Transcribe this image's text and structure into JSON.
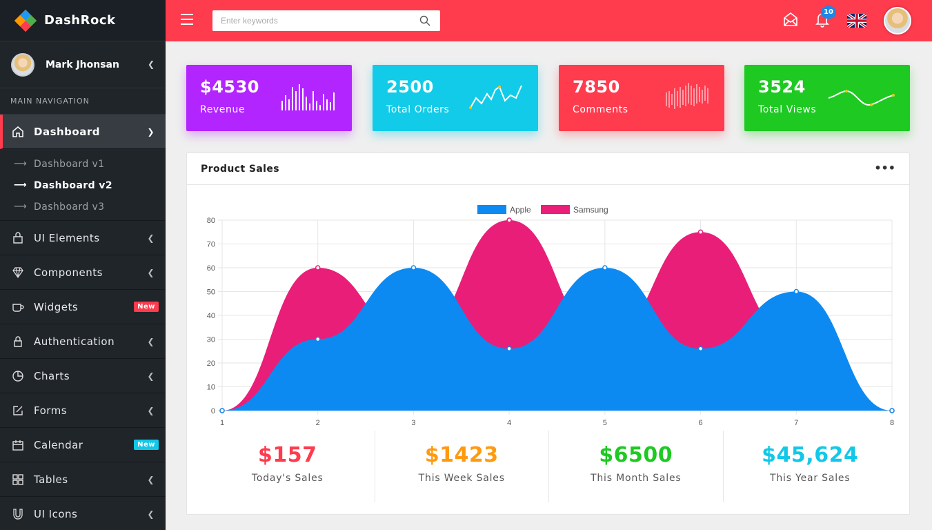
{
  "brand": {
    "name": "DashRock"
  },
  "profile": {
    "name": "Mark Jhonsan"
  },
  "sidebar": {
    "header": "MAIN NAVIGATION",
    "dashboard": {
      "label": "Dashboard",
      "sub": [
        {
          "label": "Dashboard v1"
        },
        {
          "label": "Dashboard v2"
        },
        {
          "label": "Dashboard v3"
        }
      ]
    },
    "items": [
      {
        "label": "UI Elements",
        "icon": "bag-icon"
      },
      {
        "label": "Components",
        "icon": "diamond-icon"
      },
      {
        "label": "Widgets",
        "icon": "cup-icon",
        "badge": "New",
        "badge_color": "#ff3b4e"
      },
      {
        "label": "Authentication",
        "icon": "lock-icon"
      },
      {
        "label": "Charts",
        "icon": "pie-icon"
      },
      {
        "label": "Forms",
        "icon": "edit-icon"
      },
      {
        "label": "Calendar",
        "icon": "calendar-icon",
        "badge": "New",
        "badge_color": "#12c8e8"
      },
      {
        "label": "Tables",
        "icon": "grid-icon"
      },
      {
        "label": "UI Icons",
        "icon": "magnet-icon"
      }
    ]
  },
  "topbar": {
    "search_placeholder": "Enter keywords",
    "notification_count": "10",
    "accent": "#ff3b4e"
  },
  "stats": [
    {
      "value": "$4530",
      "label": "Revenue",
      "color": "#b225ff"
    },
    {
      "value": "2500",
      "label": "Total Orders",
      "color": "#12cbe8"
    },
    {
      "value": "7850",
      "label": "Comments",
      "color": "#ff3b4e"
    },
    {
      "value": "3524",
      "label": "Total Views",
      "color": "#1ec922"
    }
  ],
  "panel": {
    "title": "Product Sales"
  },
  "chart_data": {
    "type": "area",
    "x": [
      1,
      2,
      3,
      4,
      5,
      6,
      7,
      8
    ],
    "series": [
      {
        "name": "Apple",
        "values": [
          0,
          30,
          60,
          26,
          60,
          26,
          50,
          0
        ],
        "color": "#0c8af2"
      },
      {
        "name": "Samsung",
        "values": [
          0,
          60,
          30,
          80,
          30,
          75,
          30,
          0
        ],
        "color": "#e91e78"
      }
    ],
    "ylim": [
      0,
      80
    ],
    "yticks": [
      0,
      10,
      20,
      30,
      40,
      50,
      60,
      70,
      80
    ],
    "grid": true,
    "legend": "top-center"
  },
  "summary": [
    {
      "value": "$157",
      "label": "Today's Sales",
      "color": "#ff3b4e"
    },
    {
      "value": "$1423",
      "label": "This Week Sales",
      "color": "#ff9a10"
    },
    {
      "value": "$6500",
      "label": "This Month Sales",
      "color": "#1ec922"
    },
    {
      "value": "$45,624",
      "label": "This Year Sales",
      "color": "#12c8e8"
    }
  ]
}
